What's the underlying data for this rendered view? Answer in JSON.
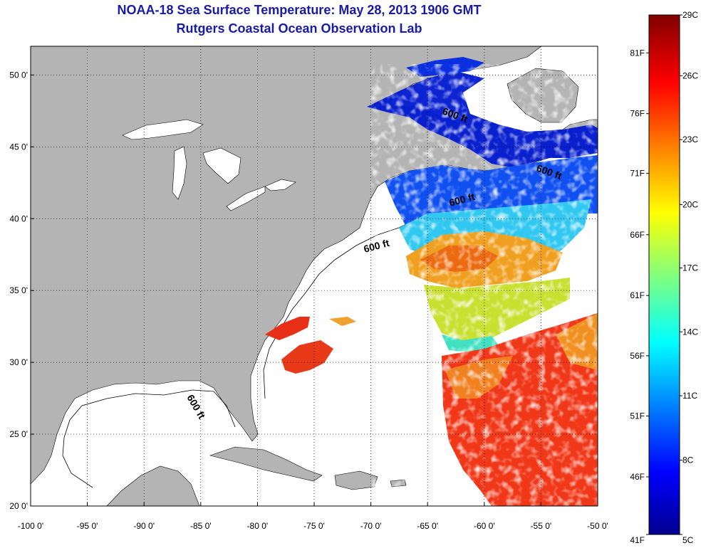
{
  "title": "NOAA-18 Sea Surface Temperature:  May 28, 2013 1906 GMT",
  "subtitle": "Rutgers Coastal Ocean Observation Lab",
  "lon_ticks": [
    "-100 0'",
    "-95 0'",
    "-90 0'",
    "-85 0'",
    "-80 0'",
    "-75 0'",
    "-70 0'",
    "-65 0'",
    "-60 0'",
    "-55 0'",
    "-50 0'"
  ],
  "lat_ticks": [
    "50 0'",
    "45 0'",
    "40 0'",
    "35 0'",
    "30 0'",
    "25 0'",
    "20 0'"
  ],
  "colorbar": {
    "celsius": [
      "29C",
      "26C",
      "23C",
      "20C",
      "17C",
      "14C",
      "11C",
      "8C",
      "5C"
    ],
    "fahrenheit": [
      "81F",
      "76F",
      "71F",
      "66F",
      "61F",
      "56F",
      "51F",
      "46F",
      "41F"
    ]
  },
  "isobath_labels": [
    "600 ft",
    "600 ft",
    "600 ft",
    "600 ft",
    "600 ft"
  ],
  "colors": {
    "title": "#1a1aa8",
    "land": "#b4b4b4",
    "ocean": "#ffffff"
  }
}
